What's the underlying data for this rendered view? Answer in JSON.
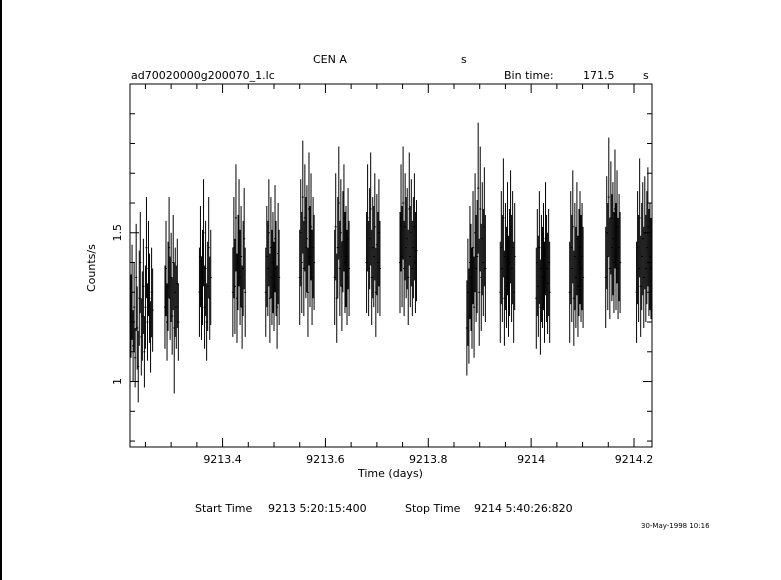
{
  "chart_data": {
    "type": "line",
    "title": "CEN A",
    "title_suffix": "s",
    "filename": "ad70020000g200070_1.lc",
    "bin_time_label": "Bin time:",
    "bin_time_value": "171.5",
    "bin_time_unit": "s",
    "xlabel": "Time (days)",
    "ylabel": "Counts/s",
    "xlim": [
      9213.22,
      9214.235
    ],
    "ylim": [
      0.78,
      2.0
    ],
    "xticks": [
      {
        "value": 9213.4,
        "label": "9213.4"
      },
      {
        "value": 9213.6,
        "label": "9213.6"
      },
      {
        "value": 9213.8,
        "label": "9213.8"
      },
      {
        "value": 9214.0,
        "label": "9214"
      },
      {
        "value": 9214.2,
        "label": "9214.2"
      }
    ],
    "yticks": [
      {
        "value": 1.0,
        "label": "1"
      },
      {
        "value": 1.5,
        "label": "1.5"
      }
    ],
    "series": [
      {
        "x": [
          9213.222,
          9213.224,
          9213.226,
          9213.228,
          9213.23,
          9213.232,
          9213.234,
          9213.236,
          9213.238,
          9213.24,
          9213.242,
          9213.244,
          9213.246,
          9213.248,
          9213.25,
          9213.252,
          9213.254,
          9213.256,
          9213.258,
          9213.26,
          9213.262,
          9213.264,
          9213.288,
          9213.29,
          9213.292,
          9213.294,
          9213.296,
          9213.298,
          9213.3,
          9213.302,
          9213.304,
          9213.306,
          9213.308,
          9213.31,
          9213.312,
          9213.314,
          9213.355,
          9213.357,
          9213.359,
          9213.361,
          9213.363,
          9213.365,
          9213.367,
          9213.369,
          9213.371,
          9213.373,
          9213.375,
          9213.377,
          9213.42,
          9213.422,
          9213.424,
          9213.426,
          9213.428,
          9213.43,
          9213.432,
          9213.434,
          9213.436,
          9213.438,
          9213.44,
          9213.442,
          9213.444,
          9213.484,
          9213.486,
          9213.488,
          9213.49,
          9213.492,
          9213.494,
          9213.496,
          9213.498,
          9213.5,
          9213.502,
          9213.504,
          9213.506,
          9213.508,
          9213.51,
          9213.55,
          9213.552,
          9213.554,
          9213.556,
          9213.558,
          9213.56,
          9213.562,
          9213.564,
          9213.566,
          9213.568,
          9213.57,
          9213.572,
          9213.574,
          9213.576,
          9213.578,
          9213.618,
          9213.62,
          9213.622,
          9213.624,
          9213.626,
          9213.628,
          9213.63,
          9213.632,
          9213.634,
          9213.636,
          9213.638,
          9213.64,
          9213.642,
          9213.644,
          9213.646,
          9213.68,
          9213.682,
          9213.684,
          9213.686,
          9213.688,
          9213.69,
          9213.692,
          9213.694,
          9213.696,
          9213.698,
          9213.7,
          9213.702,
          9213.704,
          9213.706,
          9213.745,
          9213.747,
          9213.749,
          9213.751,
          9213.753,
          9213.755,
          9213.757,
          9213.759,
          9213.761,
          9213.763,
          9213.765,
          9213.767,
          9213.769,
          9213.771,
          9213.773,
          9213.775,
          9213.777,
          9213.875,
          9213.877,
          9213.879,
          9213.881,
          9213.883,
          9213.885,
          9213.887,
          9213.889,
          9213.891,
          9213.893,
          9213.895,
          9213.897,
          9213.899,
          9213.901,
          9213.903,
          9213.905,
          9213.907,
          9213.909,
          9213.911,
          9213.94,
          9213.942,
          9213.944,
          9213.946,
          9213.948,
          9213.95,
          9213.952,
          9213.954,
          9213.956,
          9213.958,
          9213.96,
          9213.962,
          9213.964,
          9213.966,
          9213.968,
          9214.01,
          9214.012,
          9214.014,
          9214.016,
          9214.018,
          9214.02,
          9214.022,
          9214.024,
          9214.026,
          9214.028,
          9214.03,
          9214.032,
          9214.034,
          9214.036,
          9214.075,
          9214.077,
          9214.079,
          9214.081,
          9214.083,
          9214.085,
          9214.087,
          9214.089,
          9214.091,
          9214.093,
          9214.095,
          9214.097,
          9214.099,
          9214.101,
          9214.145,
          9214.147,
          9214.149,
          9214.151,
          9214.153,
          9214.155,
          9214.157,
          9214.159,
          9214.161,
          9214.163,
          9214.165,
          9214.167,
          9214.169,
          9214.171,
          9214.173,
          9214.205,
          9214.207,
          9214.209,
          9214.211,
          9214.213,
          9214.215,
          9214.217,
          9214.219,
          9214.221,
          9214.223,
          9214.225,
          9214.227,
          9214.229,
          9214.231,
          9214.233
        ],
        "y": [
          1.22,
          1.3,
          1.12,
          1.25,
          1.08,
          1.35,
          1.18,
          1.05,
          1.28,
          1.4,
          1.15,
          1.22,
          1.32,
          1.1,
          1.25,
          1.45,
          1.2,
          1.38,
          1.28,
          1.15,
          1.3,
          1.24,
          1.25,
          1.38,
          1.2,
          1.32,
          1.45,
          1.28,
          1.35,
          1.22,
          1.4,
          1.18,
          1.3,
          1.25,
          1.33,
          1.2,
          1.3,
          1.42,
          1.28,
          1.35,
          1.5,
          1.25,
          1.38,
          1.2,
          1.32,
          1.45,
          1.28,
          1.35,
          1.3,
          1.45,
          1.32,
          1.55,
          1.28,
          1.4,
          1.5,
          1.35,
          1.42,
          1.25,
          1.38,
          1.48,
          1.3,
          1.3,
          1.42,
          1.38,
          1.5,
          1.28,
          1.45,
          1.35,
          1.4,
          1.32,
          1.48,
          1.38,
          1.25,
          1.43,
          1.35,
          1.35,
          1.5,
          1.4,
          1.62,
          1.38,
          1.55,
          1.45,
          1.48,
          1.3,
          1.58,
          1.42,
          1.52,
          1.35,
          1.45,
          1.4,
          1.35,
          1.52,
          1.28,
          1.45,
          1.6,
          1.38,
          1.5,
          1.32,
          1.47,
          1.55,
          1.4,
          1.42,
          1.35,
          1.48,
          1.38,
          1.4,
          1.55,
          1.38,
          1.48,
          1.58,
          1.35,
          1.45,
          1.42,
          1.52,
          1.3,
          1.46,
          1.4,
          1.5,
          1.38,
          1.4,
          1.55,
          1.42,
          1.6,
          1.38,
          1.52,
          1.45,
          1.48,
          1.35,
          1.58,
          1.42,
          1.5,
          1.38,
          1.45,
          1.52,
          1.4,
          1.44,
          1.18,
          1.3,
          1.22,
          1.4,
          1.35,
          1.28,
          1.45,
          1.25,
          1.5,
          1.38,
          1.42,
          1.65,
          1.3,
          1.58,
          1.35,
          1.48,
          1.4,
          1.52,
          1.38,
          1.3,
          1.45,
          1.38,
          1.55,
          1.28,
          1.42,
          1.35,
          1.48,
          1.32,
          1.4,
          1.52,
          1.38,
          1.45,
          1.3,
          1.42,
          1.28,
          1.4,
          1.32,
          1.45,
          1.25,
          1.38,
          1.35,
          1.42,
          1.3,
          1.48,
          1.38,
          1.33,
          1.4,
          1.3,
          1.3,
          1.45,
          1.38,
          1.52,
          1.28,
          1.42,
          1.35,
          1.48,
          1.32,
          1.4,
          1.45,
          1.38,
          1.42,
          1.35,
          1.35,
          1.5,
          1.42,
          1.62,
          1.38,
          1.55,
          1.45,
          1.48,
          1.4,
          1.58,
          1.42,
          1.52,
          1.38,
          1.45,
          1.4,
          1.3,
          1.45,
          1.38,
          1.55,
          1.32,
          1.42,
          1.48,
          1.35,
          1.5,
          1.38,
          1.45,
          1.52,
          1.4,
          1.42,
          1.38
        ],
        "err": [
          0.14,
          0.16,
          0.12,
          0.15,
          0.1,
          0.18,
          0.14,
          0.12,
          0.16,
          0.17,
          0.13,
          0.15,
          0.16,
          0.12,
          0.14,
          0.17,
          0.13,
          0.16,
          0.15,
          0.12,
          0.15,
          0.14,
          0.14,
          0.16,
          0.13,
          0.15,
          0.17,
          0.14,
          0.15,
          0.13,
          0.16,
          0.22,
          0.15,
          0.14,
          0.15,
          0.13,
          0.15,
          0.17,
          0.14,
          0.16,
          0.18,
          0.14,
          0.16,
          0.13,
          0.15,
          0.17,
          0.14,
          0.16,
          0.15,
          0.17,
          0.16,
          0.18,
          0.15,
          0.16,
          0.18,
          0.16,
          0.17,
          0.14,
          0.16,
          0.17,
          0.15,
          0.15,
          0.17,
          0.16,
          0.18,
          0.15,
          0.17,
          0.16,
          0.17,
          0.15,
          0.18,
          0.16,
          0.14,
          0.17,
          0.16,
          0.16,
          0.18,
          0.17,
          0.19,
          0.16,
          0.18,
          0.17,
          0.18,
          0.15,
          0.19,
          0.17,
          0.18,
          0.16,
          0.17,
          0.16,
          0.16,
          0.18,
          0.15,
          0.17,
          0.19,
          0.16,
          0.18,
          0.15,
          0.17,
          0.18,
          0.17,
          0.17,
          0.16,
          0.17,
          0.16,
          0.17,
          0.18,
          0.16,
          0.17,
          0.19,
          0.16,
          0.17,
          0.17,
          0.18,
          0.15,
          0.17,
          0.17,
          0.18,
          0.16,
          0.17,
          0.18,
          0.17,
          0.19,
          0.16,
          0.18,
          0.17,
          0.17,
          0.16,
          0.19,
          0.17,
          0.18,
          0.16,
          0.17,
          0.18,
          0.17,
          0.17,
          0.16,
          0.18,
          0.16,
          0.19,
          0.18,
          0.17,
          0.19,
          0.17,
          0.2,
          0.18,
          0.19,
          0.22,
          0.18,
          0.21,
          0.18,
          0.19,
          0.18,
          0.2,
          0.18,
          0.17,
          0.19,
          0.18,
          0.2,
          0.16,
          0.18,
          0.17,
          0.19,
          0.17,
          0.18,
          0.19,
          0.18,
          0.19,
          0.17,
          0.18,
          0.17,
          0.18,
          0.17,
          0.19,
          0.16,
          0.18,
          0.17,
          0.18,
          0.17,
          0.19,
          0.18,
          0.17,
          0.18,
          0.17,
          0.17,
          0.19,
          0.18,
          0.19,
          0.16,
          0.18,
          0.17,
          0.19,
          0.17,
          0.18,
          0.19,
          0.18,
          0.18,
          0.17,
          0.17,
          0.19,
          0.18,
          0.2,
          0.17,
          0.19,
          0.18,
          0.19,
          0.17,
          0.2,
          0.18,
          0.19,
          0.17,
          0.18,
          0.17,
          0.17,
          0.19,
          0.18,
          0.2,
          0.17,
          0.18,
          0.19,
          0.17,
          0.19,
          0.18,
          0.19,
          0.2,
          0.18,
          0.18,
          0.17
        ]
      }
    ]
  },
  "footer": {
    "start_label": "Start Time",
    "start_value": "9213  5:20:15:400",
    "stop_label": "Stop Time",
    "stop_value": "9214  5:40:26:820",
    "stamp": "30-May-1998 10:16"
  }
}
